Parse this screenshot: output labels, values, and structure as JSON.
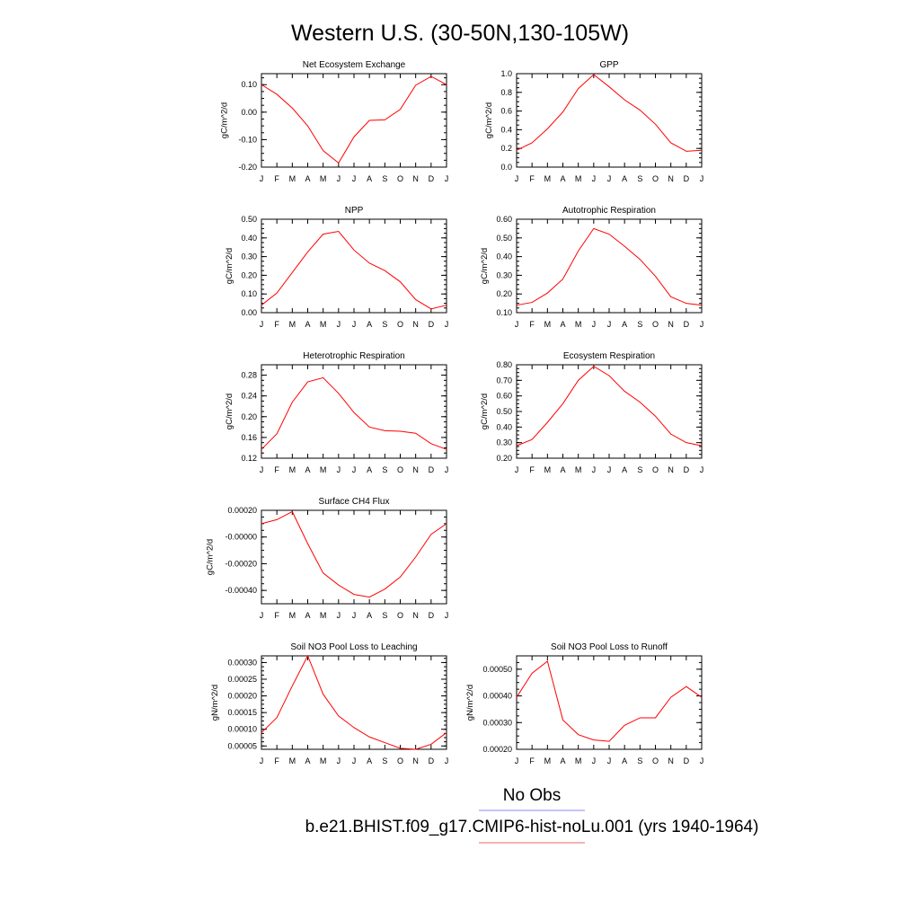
{
  "figure": {
    "title": "Western U.S. (30-50N,130-105W)",
    "legend": [
      {
        "label": "No Obs",
        "color": "#8888ee"
      },
      {
        "label": "b.e21.BHIST.f09_g17.CMIP6-hist-noLu.001 (yrs 1940-1964)",
        "color": "#ee6666"
      }
    ],
    "line_color": "#ff0000"
  },
  "chart_data": [
    {
      "type": "line",
      "title": "Net Ecosystem Exchange",
      "ylabel": "gC/m^2/d",
      "categories": [
        "J",
        "F",
        "M",
        "A",
        "M",
        "J",
        "J",
        "A",
        "S",
        "O",
        "N",
        "D",
        "J"
      ],
      "values": [
        0.1,
        0.065,
        0.015,
        -0.05,
        -0.14,
        -0.185,
        -0.09,
        -0.03,
        -0.028,
        0.01,
        0.098,
        0.13,
        0.1
      ],
      "ylim": [
        -0.2,
        0.14
      ],
      "yticks": [
        -0.2,
        -0.1,
        0.0,
        0.1
      ],
      "yticklabels": [
        "-0.20",
        "-0.10",
        "0.00",
        "0.10"
      ]
    },
    {
      "type": "line",
      "title": "GPP",
      "ylabel": "gC/m^2/d",
      "categories": [
        "J",
        "F",
        "M",
        "A",
        "M",
        "J",
        "J",
        "A",
        "S",
        "O",
        "N",
        "D",
        "J"
      ],
      "values": [
        0.18,
        0.26,
        0.41,
        0.59,
        0.84,
        0.99,
        0.86,
        0.72,
        0.61,
        0.46,
        0.26,
        0.17,
        0.18
      ],
      "ylim": [
        0.0,
        1.0
      ],
      "yticks": [
        0.0,
        0.2,
        0.4,
        0.6,
        0.8,
        1.0
      ],
      "yticklabels": [
        "0.0",
        "0.2",
        "0.4",
        "0.6",
        "0.8",
        "1.0"
      ]
    },
    {
      "type": "line",
      "title": "NPP",
      "ylabel": "gC/m^2/d",
      "categories": [
        "J",
        "F",
        "M",
        "A",
        "M",
        "J",
        "J",
        "A",
        "S",
        "O",
        "N",
        "D",
        "J"
      ],
      "values": [
        0.04,
        0.105,
        0.215,
        0.325,
        0.42,
        0.435,
        0.335,
        0.265,
        0.225,
        0.165,
        0.07,
        0.02,
        0.04
      ],
      "ylim": [
        0.0,
        0.5
      ],
      "yticks": [
        0.0,
        0.1,
        0.2,
        0.3,
        0.4,
        0.5
      ],
      "yticklabels": [
        "0.00",
        "0.10",
        "0.20",
        "0.30",
        "0.40",
        "0.50"
      ]
    },
    {
      "type": "line",
      "title": "Autotrophic Respiration",
      "ylabel": "gC/m^2/d",
      "categories": [
        "J",
        "F",
        "M",
        "A",
        "M",
        "J",
        "J",
        "A",
        "S",
        "O",
        "N",
        "D",
        "J"
      ],
      "values": [
        0.14,
        0.155,
        0.205,
        0.28,
        0.43,
        0.55,
        0.52,
        0.455,
        0.385,
        0.295,
        0.185,
        0.15,
        0.14
      ],
      "ylim": [
        0.1,
        0.6
      ],
      "yticks": [
        0.1,
        0.2,
        0.3,
        0.4,
        0.5,
        0.6
      ],
      "yticklabels": [
        "0.10",
        "0.20",
        "0.30",
        "0.40",
        "0.50",
        "0.60"
      ]
    },
    {
      "type": "line",
      "title": "Heterotrophic Respiration",
      "ylabel": "gC/m^2/d",
      "categories": [
        "J",
        "F",
        "M",
        "A",
        "M",
        "J",
        "J",
        "A",
        "S",
        "O",
        "N",
        "D",
        "J"
      ],
      "values": [
        0.137,
        0.167,
        0.228,
        0.267,
        0.275,
        0.245,
        0.208,
        0.18,
        0.173,
        0.172,
        0.168,
        0.148,
        0.137
      ],
      "ylim": [
        0.12,
        0.3
      ],
      "yticks": [
        0.12,
        0.16,
        0.2,
        0.24,
        0.28
      ],
      "yticklabels": [
        "0.12",
        "0.16",
        "0.20",
        "0.24",
        "0.28"
      ]
    },
    {
      "type": "line",
      "title": "Ecosystem Respiration",
      "ylabel": "gC/m^2/d",
      "categories": [
        "J",
        "F",
        "M",
        "A",
        "M",
        "J",
        "J",
        "A",
        "S",
        "O",
        "N",
        "D",
        "J"
      ],
      "values": [
        0.28,
        0.32,
        0.43,
        0.55,
        0.7,
        0.79,
        0.73,
        0.63,
        0.56,
        0.47,
        0.355,
        0.3,
        0.28
      ],
      "ylim": [
        0.2,
        0.8
      ],
      "yticks": [
        0.2,
        0.3,
        0.4,
        0.5,
        0.6,
        0.7,
        0.8
      ],
      "yticklabels": [
        "0.20",
        "0.30",
        "0.40",
        "0.50",
        "0.60",
        "0.70",
        "0.80"
      ]
    },
    {
      "type": "line",
      "title": "Surface CH4 Flux",
      "ylabel": "gC/m^2/d",
      "categories": [
        "J",
        "F",
        "M",
        "A",
        "M",
        "J",
        "J",
        "A",
        "S",
        "O",
        "N",
        "D",
        "J"
      ],
      "values": [
        0.0001,
        0.00013,
        0.00019,
        -5e-05,
        -0.00027,
        -0.00036,
        -0.00043,
        -0.00045,
        -0.00039,
        -0.0003,
        -0.00015,
        2e-05,
        0.0001
      ],
      "ylim": [
        -0.0005,
        0.0002
      ],
      "yticks": [
        -0.0004,
        -0.0002,
        0.0,
        0.0002
      ],
      "yticklabels": [
        "-0.00040",
        "-0.00020",
        "-0.00000",
        "0.00020"
      ]
    },
    {
      "type": "line",
      "title": "Soil NO3 Pool Loss to Leaching",
      "ylabel": "gN/m^2/d",
      "categories": [
        "J",
        "F",
        "M",
        "A",
        "M",
        "J",
        "J",
        "A",
        "S",
        "O",
        "N",
        "D",
        "J"
      ],
      "values": [
        9e-05,
        0.000135,
        0.00023,
        0.00032,
        0.000205,
        0.00014,
        0.000105,
        7.7e-05,
        6e-05,
        4.3e-05,
        4e-05,
        5.5e-05,
        9e-05
      ],
      "ylim": [
        4e-05,
        0.00032
      ],
      "yticks": [
        5e-05,
        0.0001,
        0.00015,
        0.0002,
        0.00025,
        0.0003
      ],
      "yticklabels": [
        "0.00005",
        "0.00010",
        "0.00015",
        "0.00020",
        "0.00025",
        "0.00030"
      ]
    },
    {
      "type": "line",
      "title": "Soil NO3 Pool Loss to Runoff",
      "ylabel": "gN/m^2/d",
      "categories": [
        "J",
        "F",
        "M",
        "A",
        "M",
        "J",
        "J",
        "A",
        "S",
        "O",
        "N",
        "D",
        "J"
      ],
      "values": [
        0.000395,
        0.000485,
        0.00053,
        0.00031,
        0.000255,
        0.000235,
        0.00023,
        0.00029,
        0.000318,
        0.000318,
        0.000395,
        0.000435,
        0.000395
      ],
      "ylim": [
        0.0002,
        0.00055
      ],
      "yticks": [
        0.0002,
        0.0003,
        0.0004,
        0.0005
      ],
      "yticklabels": [
        "0.00020",
        "0.00030",
        "0.00040",
        "0.00050"
      ]
    }
  ]
}
